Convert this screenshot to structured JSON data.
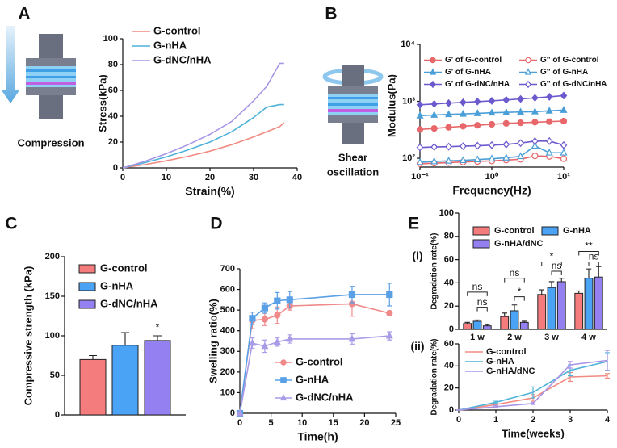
{
  "panels": [
    "A",
    "B",
    "C",
    "D",
    "E",
    "(i)",
    "(ii)"
  ],
  "illustrations": [
    "Compression",
    "Shear",
    "oscillation"
  ],
  "chart_data": [
    {
      "type": "line",
      "xlabel": "Strain(%)",
      "ylabel": "Stress(kPa)",
      "legend": "upper left",
      "xlim": [
        0,
        40
      ],
      "xticks": [
        0,
        10,
        20,
        30,
        40
      ],
      "ylim": [
        0,
        100
      ],
      "yticks": [
        0,
        20,
        40,
        60,
        80,
        100
      ],
      "x": [
        0,
        5,
        10,
        15,
        20,
        25,
        30,
        33,
        36,
        37
      ],
      "series": [
        {
          "name": "G-control",
          "color": "#f28b82",
          "values": [
            0,
            2.5,
            5.5,
            9,
            13,
            18,
            24,
            28,
            32,
            35
          ]
        },
        {
          "name": "G-nHA",
          "color": "#4fb3d9",
          "values": [
            0,
            4,
            8.5,
            14,
            20,
            28,
            39,
            47,
            49,
            49
          ]
        },
        {
          "name": "G-dNC/nHA",
          "color": "#a995e6",
          "values": [
            0,
            5,
            11,
            18,
            26,
            36,
            52,
            63,
            81,
            81
          ]
        }
      ]
    },
    {
      "type": "line",
      "xlabel": "Frequency(Hz)",
      "ylabel": "Modulus(Pa)",
      "legend": "upper left",
      "xlog": true,
      "ylog": true,
      "xlim": [
        0.1,
        10
      ],
      "xticks": [
        {
          "value": 0.1,
          "label": "10⁻¹"
        },
        {
          "value": 1,
          "label": "10⁰"
        },
        {
          "value": 10,
          "label": "10¹"
        }
      ],
      "ylim": [
        70,
        10000
      ],
      "yticks": [
        {
          "value": 100,
          "label": "10²"
        },
        {
          "value": 1000,
          "label": "10³"
        },
        {
          "value": 10000,
          "label": "10⁴"
        }
      ],
      "x": [
        0.1,
        0.158,
        0.251,
        0.398,
        0.631,
        1,
        1.585,
        2.512,
        3.981,
        6.31,
        10
      ],
      "series": [
        {
          "name": "G' of G-control",
          "color": "#e8676b",
          "marker": "circle",
          "filled": true,
          "values": [
            320,
            335,
            350,
            365,
            380,
            395,
            410,
            420,
            430,
            440,
            450
          ]
        },
        {
          "name": "G'' of G-control",
          "color": "#e8676b",
          "marker": "circle",
          "filled": false,
          "values": [
            80,
            82,
            84,
            86,
            88,
            90,
            93,
            96,
            110,
            108,
            98
          ]
        },
        {
          "name": "G' of G-nHA",
          "color": "#4a9fd8",
          "marker": "triangle",
          "filled": true,
          "values": [
            560,
            575,
            590,
            600,
            615,
            630,
            640,
            650,
            660,
            680,
            700
          ]
        },
        {
          "name": "G'' of G-nHA",
          "color": "#4a9fd8",
          "marker": "triangle",
          "filled": false,
          "values": [
            85,
            88,
            90,
            92,
            95,
            98,
            102,
            108,
            165,
            125,
            125
          ]
        },
        {
          "name": "G' of G-dNC/nHA",
          "color": "#6a5acd",
          "marker": "diamond",
          "filled": true,
          "values": [
            870,
            900,
            930,
            960,
            990,
            1020,
            1060,
            1100,
            1150,
            1200,
            1260
          ]
        },
        {
          "name": "G'' of G-dNC/nHA",
          "color": "#6a5acd",
          "marker": "diamond",
          "filled": false,
          "values": [
            155,
            158,
            160,
            163,
            166,
            170,
            175,
            185,
            200,
            200,
            170
          ]
        }
      ]
    },
    {
      "type": "bar",
      "ylabel": "Compressive strength (kPa)",
      "legend": "upper left",
      "ylim": [
        0,
        200
      ],
      "yticks": [
        0,
        50,
        100,
        150,
        200
      ],
      "annotations": [
        "*"
      ],
      "series": [
        {
          "name": "G-control",
          "color": "#f47c7c",
          "values": [
            70
          ],
          "errors": [
            5
          ]
        },
        {
          "name": "G-nHA",
          "color": "#4aa3f5",
          "values": [
            88
          ],
          "errors": [
            16
          ]
        },
        {
          "name": "G-dNC/nHA",
          "color": "#9580f2",
          "values": [
            94
          ],
          "errors": [
            6
          ]
        }
      ]
    },
    {
      "type": "line",
      "xlabel": "Time(h)",
      "ylabel": "Swelling ratio(%)",
      "legend": "lower right",
      "xlim": [
        0,
        25
      ],
      "xticks": [
        0,
        5,
        10,
        15,
        20,
        25
      ],
      "ylim": [
        0,
        700
      ],
      "yticks": [
        0,
        100,
        200,
        300,
        400,
        500,
        600,
        700
      ],
      "x": [
        0,
        2,
        4,
        6,
        8,
        18,
        24
      ],
      "series": [
        {
          "name": "G-control",
          "color": "#f08a8a",
          "marker": "circle",
          "filled": true,
          "values": [
            0,
            450,
            455,
            475,
            520,
            530,
            485
          ],
          "errors": [
            0,
            40,
            30,
            40,
            20,
            60,
            10
          ]
        },
        {
          "name": "G-nHA",
          "color": "#5aa0e6",
          "marker": "square",
          "filled": true,
          "values": [
            0,
            460,
            510,
            545,
            550,
            575,
            575
          ],
          "errors": [
            0,
            30,
            25,
            40,
            40,
            40,
            55
          ]
        },
        {
          "name": "G-dNC/nHA",
          "color": "#a99be6",
          "marker": "triangle",
          "filled": true,
          "values": [
            0,
            340,
            325,
            345,
            360,
            360,
            375
          ],
          "errors": [
            0,
            25,
            30,
            20,
            20,
            25,
            20
          ]
        }
      ]
    },
    {
      "type": "bar",
      "ylabel": "Degradation rate(%)",
      "legend": "upper left",
      "categories": [
        "1 w",
        "2 w",
        "3 w",
        "4 w"
      ],
      "ylim": [
        0,
        100
      ],
      "yticks": [
        0,
        20,
        40,
        60,
        80,
        100
      ],
      "annotations": [
        "ns",
        "ns",
        "ns",
        "*",
        "*",
        "ns",
        "**",
        "ns"
      ],
      "series": [
        {
          "name": "G-control",
          "color": "#f47c7c",
          "values": [
            5,
            11,
            30,
            31
          ],
          "errors": [
            1,
            3,
            4,
            2
          ]
        },
        {
          "name": "G-nHA",
          "color": "#4aa3f5",
          "values": [
            7,
            16,
            36,
            44
          ],
          "errors": [
            1,
            5,
            5,
            8
          ]
        },
        {
          "name": "G-nHA/dNC",
          "color": "#9580f2",
          "values": [
            3,
            6,
            41,
            45
          ],
          "errors": [
            1,
            1,
            3,
            9
          ]
        }
      ]
    },
    {
      "type": "line",
      "xlabel": "Time(weeks)",
      "ylabel": "Degradation rate(%)",
      "legend": "upper left",
      "xlim": [
        0,
        4
      ],
      "xticks": [
        0,
        1,
        2,
        3,
        4
      ],
      "ylim": [
        0,
        60
      ],
      "yticks": [
        0,
        20,
        40,
        60
      ],
      "x": [
        0,
        1,
        2,
        3,
        4
      ],
      "series": [
        {
          "name": "G-control",
          "color": "#f28b82",
          "values": [
            0,
            5,
            11,
            30,
            31
          ],
          "errors": [
            0,
            1,
            3,
            4,
            2
          ]
        },
        {
          "name": "G-nHA",
          "color": "#4fb3d9",
          "values": [
            0,
            7,
            16,
            36,
            44
          ],
          "errors": [
            0,
            1,
            5,
            5,
            8
          ]
        },
        {
          "name": "G-nHA/dNC",
          "color": "#a995e6",
          "values": [
            0,
            3,
            6,
            41,
            45
          ],
          "errors": [
            0,
            1,
            1,
            3,
            9
          ]
        }
      ]
    }
  ]
}
